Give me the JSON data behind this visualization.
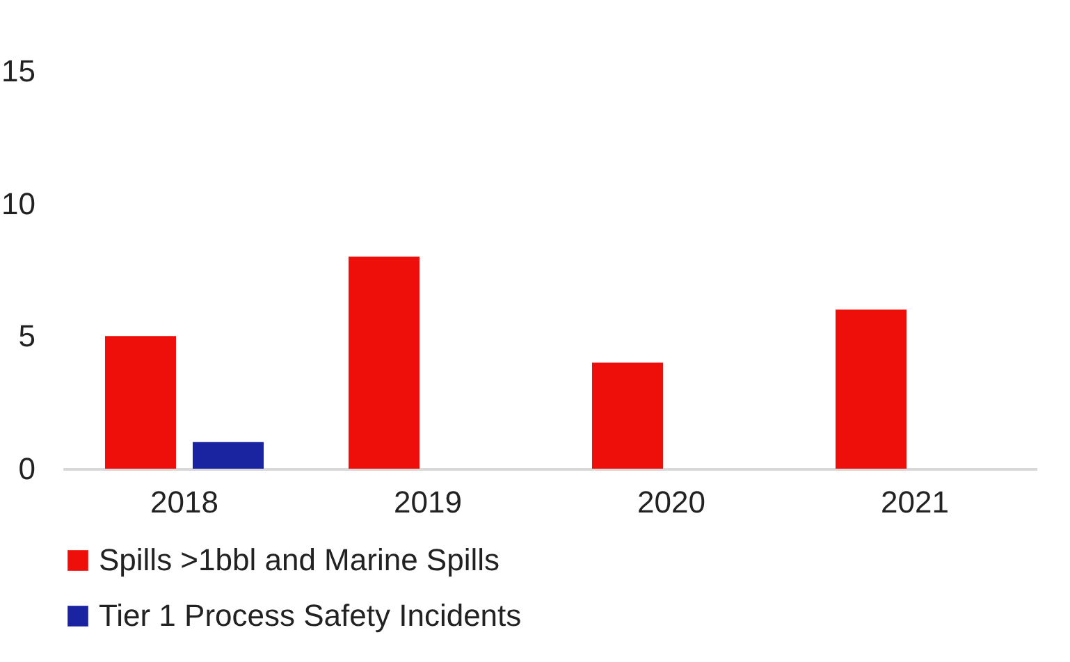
{
  "chart_data": {
    "type": "bar",
    "categories": [
      "2018",
      "2019",
      "2020",
      "2021"
    ],
    "series": [
      {
        "name": "Spills >1bbl and Marine Spills",
        "color": "#ee0e0a",
        "values": [
          5,
          8,
          4,
          6
        ]
      },
      {
        "name": "Tier 1 Process Safety Incidents",
        "color": "#1a24a0",
        "values": [
          1,
          0,
          0,
          0
        ]
      }
    ],
    "ylim": [
      0,
      15
    ],
    "yticks": [
      0,
      5,
      10,
      15
    ],
    "grid": false,
    "legend": "bottom"
  }
}
